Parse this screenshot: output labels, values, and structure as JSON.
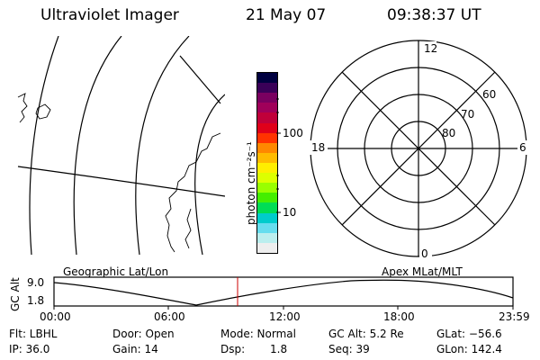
{
  "header": {
    "instrument": "Ultraviolet Imager",
    "date": "21 May 07",
    "time": "09:38:37 UT"
  },
  "colorbar": {
    "unit_label": "photon cm⁻²s⁻¹",
    "ticks": [
      "100",
      "10"
    ],
    "colors": [
      "#000040",
      "#3a0058",
      "#7a0060",
      "#a0005a",
      "#c0003a",
      "#e0001a",
      "#ff3300",
      "#ff8800",
      "#ffbb00",
      "#ffee00",
      "#ddff00",
      "#99ff00",
      "#44ee00",
      "#00dd55",
      "#00cccc",
      "#66ddee",
      "#bbeeee",
      "#eeeeee"
    ]
  },
  "polar": {
    "labels": {
      "top": "12",
      "bottom": "0",
      "left": "18",
      "right": "6"
    },
    "lat_labels": [
      "60",
      "70",
      "80"
    ]
  },
  "timeline": {
    "left_title": "Geographic Lat/Lon",
    "right_title": "Apex MLat/MLT",
    "ylabel": "GC Alt",
    "y_ticks": [
      "9.0",
      "1.8"
    ],
    "x_ticks": [
      "00:00",
      "06:00",
      "12:00",
      "18:00",
      "23:59"
    ],
    "current_time_color": "#cc0000"
  },
  "status": {
    "flt": "Flt: LBHL",
    "ip": "IP: 36.0",
    "door": "Door: Open",
    "gain": "Gain: 14",
    "mode": "Mode: Normal",
    "dsp": "Dsp:",
    "dsp_val": "1.8",
    "gcalt": "GC Alt: 5.2 Re",
    "seq": "Seq: 39",
    "glat": "GLat: −56.6",
    "glon": "GLon: 142.4"
  }
}
